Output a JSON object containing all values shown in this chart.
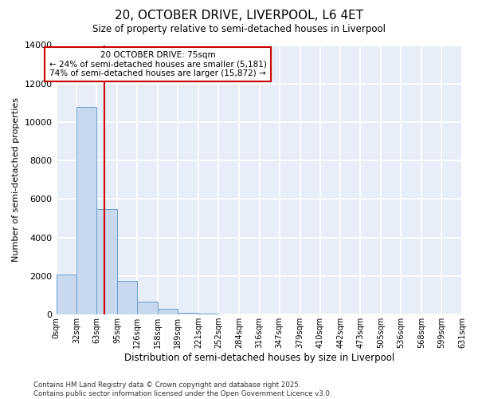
{
  "title": "20, OCTOBER DRIVE, LIVERPOOL, L6 4ET",
  "subtitle": "Size of property relative to semi-detached houses in Liverpool",
  "xlabel": "Distribution of semi-detached houses by size in Liverpool",
  "ylabel": "Number of semi-detached properties",
  "property_label": "20 OCTOBER DRIVE: 75sqm",
  "pct_smaller": 24,
  "pct_larger": 74,
  "n_smaller": 5181,
  "n_larger": 15872,
  "bin_edges": [
    0,
    32,
    63,
    95,
    126,
    158,
    189,
    221,
    252,
    284,
    316,
    347,
    379,
    410,
    442,
    473,
    505,
    536,
    568,
    599,
    631
  ],
  "bin_labels": [
    "0sqm",
    "32sqm",
    "63sqm",
    "95sqm",
    "126sqm",
    "158sqm",
    "189sqm",
    "221sqm",
    "252sqm",
    "284sqm",
    "316sqm",
    "347sqm",
    "379sqm",
    "410sqm",
    "442sqm",
    "473sqm",
    "505sqm",
    "536sqm",
    "568sqm",
    "599sqm",
    "631sqm"
  ],
  "bar_heights": [
    2100,
    10800,
    5500,
    1750,
    650,
    300,
    100,
    50,
    0,
    0,
    0,
    0,
    0,
    0,
    0,
    0,
    0,
    0,
    0,
    0
  ],
  "bar_facecolor": "#c8d8ee",
  "bar_edgecolor": "#6a9fd0",
  "redline_x": 75,
  "redline_color": "#cc0000",
  "background_color": "#e8eef8",
  "grid_color": "#ffffff",
  "ylim": [
    0,
    14000
  ],
  "yticks": [
    0,
    2000,
    4000,
    6000,
    8000,
    10000,
    12000,
    14000
  ],
  "annotation_box_edgecolor": "#cc0000",
  "footer": "Contains HM Land Registry data © Crown copyright and database right 2025.\nContains public sector information licensed under the Open Government Licence v3.0."
}
